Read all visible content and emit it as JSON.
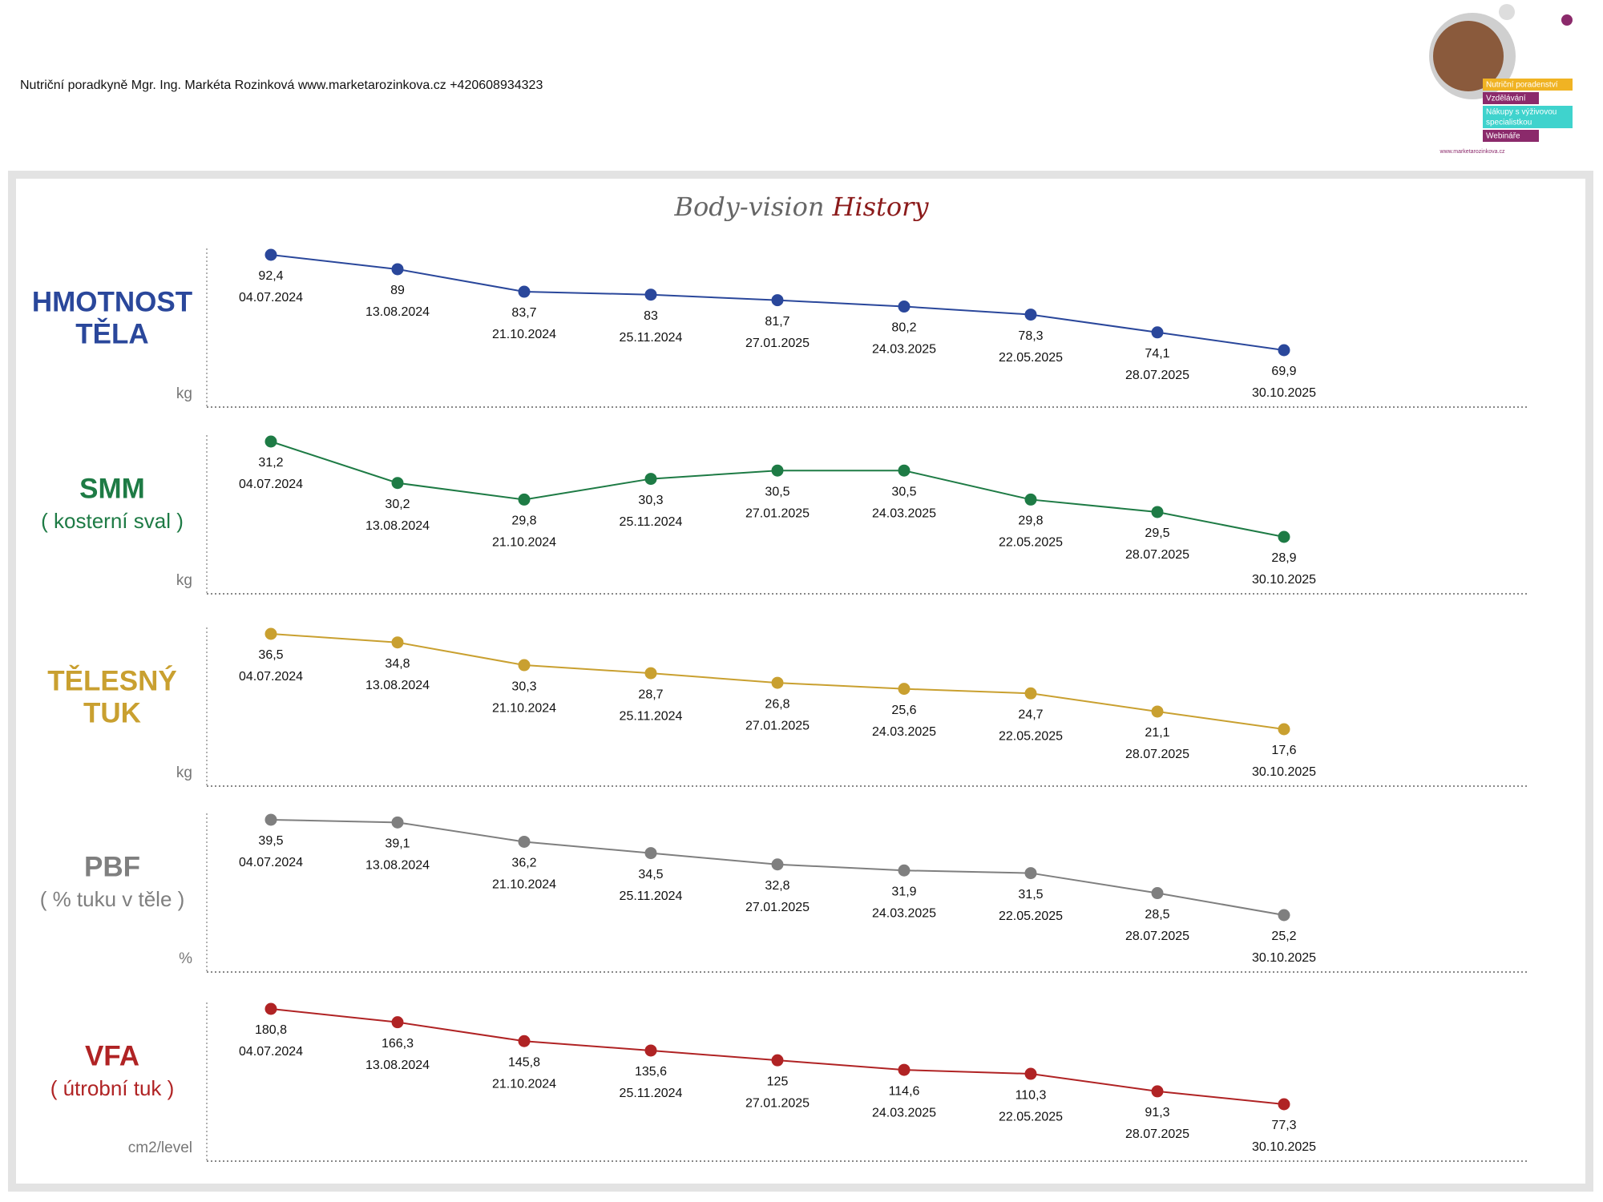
{
  "header": {
    "text": "Nutriční poradkyně Mgr. Ing. Markéta Rozinková www.marketarozinkova.cz +420608934323"
  },
  "logo": {
    "tags": [
      [
        "Nutriční poradenství"
      ],
      [
        "Vzdělávání"
      ],
      [
        "Nákupy s výživovou",
        "specialistkou"
      ],
      [
        "Webináře"
      ]
    ],
    "url": "www.marketarozinkova.cz"
  },
  "page_title": {
    "part1": "Body-vision",
    "part2": "History"
  },
  "chart_data": [
    {
      "type": "line",
      "title": [
        "HMOTNOST",
        "TĚLA"
      ],
      "y_label": "kg",
      "color": "#2a479b",
      "categories": [
        "04.07.2024",
        "13.08.2024",
        "21.10.2024",
        "25.11.2024",
        "27.01.2025",
        "24.03.2025",
        "22.05.2025",
        "28.07.2025",
        "30.10.2025"
      ],
      "values": [
        92.4,
        89,
        83.7,
        83,
        81.7,
        80.2,
        78.3,
        74.1,
        69.9
      ],
      "value_labels": [
        "92,4",
        "89",
        "83,7",
        "83",
        "81,7",
        "80,2",
        "78,3",
        "74,1",
        "69,9"
      ]
    },
    {
      "type": "line",
      "title": [
        "SMM"
      ],
      "subtitle": "( kosterní sval )",
      "y_label": "kg",
      "color": "#1e7b45",
      "categories": [
        "04.07.2024",
        "13.08.2024",
        "21.10.2024",
        "25.11.2024",
        "27.01.2025",
        "24.03.2025",
        "22.05.2025",
        "28.07.2025",
        "30.10.2025"
      ],
      "values": [
        31.2,
        30.2,
        29.8,
        30.3,
        30.5,
        30.5,
        29.8,
        29.5,
        28.9
      ],
      "value_labels": [
        "31,2",
        "30,2",
        "29,8",
        "30,3",
        "30,5",
        "30,5",
        "29,8",
        "29,5",
        "28,9"
      ]
    },
    {
      "type": "line",
      "title": [
        "TĚLESNÝ",
        "TUK"
      ],
      "y_label": "kg",
      "color": "#c9a030",
      "categories": [
        "04.07.2024",
        "13.08.2024",
        "21.10.2024",
        "25.11.2024",
        "27.01.2025",
        "24.03.2025",
        "22.05.2025",
        "28.07.2025",
        "30.10.2025"
      ],
      "values": [
        36.5,
        34.8,
        30.3,
        28.7,
        26.8,
        25.6,
        24.7,
        21.1,
        17.6
      ],
      "value_labels": [
        "36,5",
        "34,8",
        "30,3",
        "28,7",
        "26,8",
        "25,6",
        "24,7",
        "21,1",
        "17,6"
      ]
    },
    {
      "type": "line",
      "title": [
        "PBF"
      ],
      "subtitle": "( % tuku v těle )",
      "y_label": "%",
      "color": "#7f7f7f",
      "categories": [
        "04.07.2024",
        "13.08.2024",
        "21.10.2024",
        "25.11.2024",
        "27.01.2025",
        "24.03.2025",
        "22.05.2025",
        "28.07.2025",
        "30.10.2025"
      ],
      "values": [
        39.5,
        39.1,
        36.2,
        34.5,
        32.8,
        31.9,
        31.5,
        28.5,
        25.2
      ],
      "value_labels": [
        "39,5",
        "39,1",
        "36,2",
        "34,5",
        "32,8",
        "31,9",
        "31,5",
        "28,5",
        "25,2"
      ]
    },
    {
      "type": "line",
      "title": [
        "VFA"
      ],
      "subtitle": "( útrobní tuk )",
      "y_label": "cm2/level",
      "color": "#b02324",
      "categories": [
        "04.07.2024",
        "13.08.2024",
        "21.10.2024",
        "25.11.2024",
        "27.01.2025",
        "24.03.2025",
        "22.05.2025",
        "28.07.2025",
        "30.10.2025"
      ],
      "values": [
        180.8,
        166.3,
        145.8,
        135.6,
        125,
        114.6,
        110.3,
        91.3,
        77.3
      ],
      "value_labels": [
        "180,8",
        "166,3",
        "145,8",
        "135,6",
        "125",
        "114,6",
        "110,3",
        "91,3",
        "77,3"
      ]
    }
  ]
}
